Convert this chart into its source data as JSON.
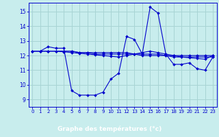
{
  "title": "Graphe des températures (°c)",
  "bg_color": "#c8eded",
  "xlabel_bg": "#2020aa",
  "xlabel_fg": "#ffffff",
  "grid_color": "#a8d4d4",
  "line_color": "#0000cc",
  "x_ticks": [
    0,
    1,
    2,
    3,
    4,
    5,
    6,
    7,
    8,
    9,
    10,
    11,
    12,
    13,
    14,
    15,
    16,
    17,
    18,
    19,
    20,
    21,
    22,
    23
  ],
  "y_ticks": [
    9,
    10,
    11,
    12,
    13,
    14,
    15
  ],
  "ylim": [
    8.5,
    15.6
  ],
  "xlim": [
    -0.5,
    23.5
  ],
  "series1": [
    12.3,
    12.3,
    12.6,
    12.5,
    12.5,
    9.6,
    9.3,
    9.3,
    9.3,
    9.5,
    10.4,
    10.8,
    13.3,
    13.1,
    12.1,
    15.3,
    14.9,
    12.1,
    11.4,
    11.4,
    11.5,
    11.1,
    11.0,
    11.9
  ],
  "series2": [
    12.3,
    12.3,
    12.3,
    12.3,
    12.3,
    12.3,
    12.2,
    12.2,
    12.1,
    12.1,
    12.1,
    12.1,
    12.1,
    12.1,
    12.0,
    12.0,
    12.0,
    12.0,
    11.9,
    11.9,
    11.9,
    11.9,
    11.9,
    11.9
  ],
  "series3": [
    12.3,
    12.3,
    12.3,
    12.3,
    12.3,
    12.3,
    12.2,
    12.2,
    12.2,
    12.2,
    12.2,
    12.2,
    12.2,
    12.1,
    12.1,
    12.1,
    12.1,
    12.0,
    12.0,
    12.0,
    12.0,
    12.0,
    12.0,
    12.0
  ],
  "series4": [
    12.3,
    12.3,
    12.3,
    12.3,
    12.25,
    12.2,
    12.15,
    12.1,
    12.05,
    12.0,
    11.95,
    11.9,
    12.0,
    12.1,
    12.2,
    12.3,
    12.2,
    12.1,
    12.0,
    11.9,
    11.85,
    11.8,
    11.75,
    12.0
  ]
}
